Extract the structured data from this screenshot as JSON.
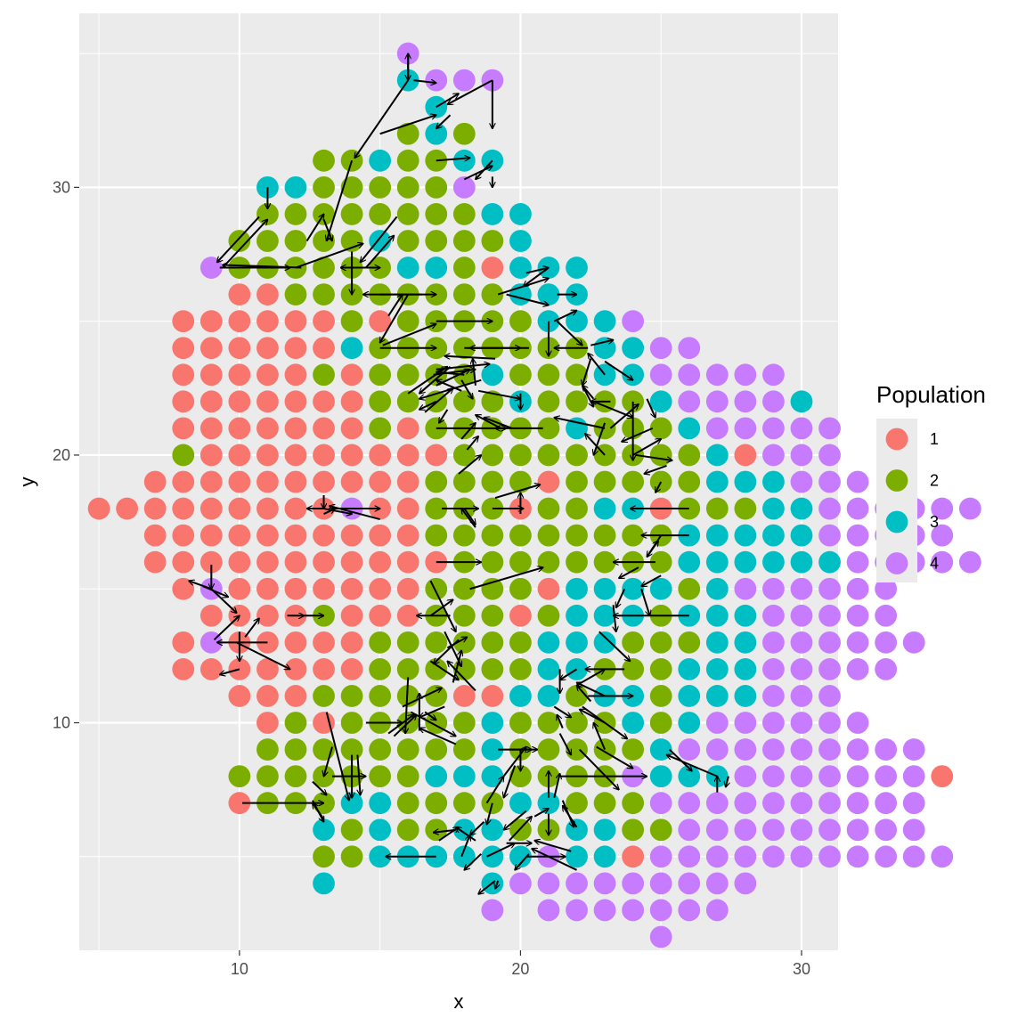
{
  "chart_data": {
    "type": "scatter",
    "xlabel": "x",
    "ylabel": "y",
    "xlim": [
      4.3,
      31.3
    ],
    "ylim": [
      1.5,
      36.5
    ],
    "x_ticks": [
      10,
      20,
      30
    ],
    "y_ticks": [
      10,
      20,
      30
    ],
    "grid": true,
    "legend": {
      "title": "Population",
      "position": "right",
      "entries": [
        "1",
        "2",
        "3",
        "4"
      ]
    },
    "colors": {
      "1": "#F8766D",
      "2": "#7CAE00",
      "3": "#00BFC4",
      "4": "#C77CFF",
      "arrow": "#000000",
      "panel": "#EBEBEB",
      "grid": "#FFFFFF"
    },
    "rows": [
      {
        "y": 35,
        "x0": 16,
        "pops": "4"
      },
      {
        "y": 34,
        "x0": 16,
        "pops": "3444"
      },
      {
        "y": 33,
        "x0": 17,
        "pops": "3"
      },
      {
        "y": 32,
        "x0": 16,
        "pops": "232"
      },
      {
        "y": 31,
        "x0": 13,
        "pops": "2232233"
      },
      {
        "y": 30,
        "x0": 11,
        "pops": "33222224"
      },
      {
        "y": 29,
        "x0": 11,
        "pops": "2222222233"
      },
      {
        "y": 28,
        "x0": 10,
        "pops": "22222322223"
      },
      {
        "y": 27,
        "x0": 9,
        "pops": "42222223321333"
      },
      {
        "y": 26,
        "x0": 10,
        "pops": "1122222222333"
      },
      {
        "y": 25,
        "x0": 8,
        "pops": "11111121222223334"
      },
      {
        "y": 24,
        "x0": 8,
        "pops": "1111113222222223344"
      },
      {
        "y": 23,
        "x0": 8,
        "pops": "1111121222232223344444"
      },
      {
        "y": 22,
        "x0": 8,
        "pops": "11111112222232222344443"
      },
      {
        "y": 21,
        "x0": 8,
        "pops": "111111121222223222344444"
      },
      {
        "y": 20,
        "x0": 8,
        "pops": "211111111122222222231444"
      },
      {
        "y": 19,
        "x0": 7,
        "pops": "11111111112222122222333444"
      },
      {
        "y": 18,
        "x0": 5,
        "pops": "11111111141122212233122233444444"
      },
      {
        "y": 17,
        "x0": 7,
        "pops": "11111111112222222223333344444"
      },
      {
        "y": 16,
        "x0": 7,
        "pops": "111111111112222222233333344444"
      },
      {
        "y": 15,
        "x0": 8,
        "pops": "14111111122221333323444444"
      },
      {
        "y": 14,
        "x0": 9,
        "pops": "1111211122212333233344444"
      },
      {
        "y": 13,
        "x0": 8,
        "pops": "141111122222233322233444444"
      },
      {
        "y": 12,
        "x0": 8,
        "pops": "11111112222223322233344444"
      },
      {
        "y": 11,
        "x0": 10,
        "pops": "1112222211332332333444"
      },
      {
        "y": 10,
        "x0": 11,
        "pops": "1212222232222323444444"
      },
      {
        "y": 9,
        "x0": 11,
        "pops": "222222223222223444444444"
      },
      {
        "y": 8,
        "x0": 10,
        "pops": "22222223332222433344444441"
      },
      {
        "y": 7,
        "x0": 10,
        "pops": "1222332222332224444444444"
      },
      {
        "y": 6,
        "x0": 13,
        "pops": "3232233223322444444444"
      },
      {
        "y": 5,
        "x0": 13,
        "pops": "22333333433144444444444"
      },
      {
        "y": 4,
        "x0": 13,
        "pops": "3-----3444444444"
      },
      {
        "y": 3,
        "x0": 19,
        "pops": "4-4444444"
      },
      {
        "y": 2,
        "x0": 25,
        "pops": "4"
      }
    ],
    "arrows": [
      [
        16,
        35,
        16,
        34
      ],
      [
        16,
        34,
        16,
        35
      ],
      [
        16.2,
        34,
        17,
        33.9
      ],
      [
        17,
        33,
        17.8,
        33.5
      ],
      [
        19,
        34,
        17.4,
        33.1
      ],
      [
        19,
        34,
        19,
        32.2
      ],
      [
        17.5,
        32.7,
        17,
        32.2
      ],
      [
        15,
        32,
        17,
        32.7
      ],
      [
        16,
        34,
        14.1,
        31.1
      ],
      [
        17,
        31,
        18.2,
        31.1
      ],
      [
        18,
        30.3,
        19,
        30.8
      ],
      [
        19,
        31,
        18.4,
        30.3
      ],
      [
        19,
        30.4,
        19,
        30
      ],
      [
        14,
        31,
        13.1,
        28
      ],
      [
        12.4,
        28,
        13,
        29
      ],
      [
        13,
        28.8,
        13.3,
        28
      ],
      [
        11,
        30,
        11,
        29.2
      ],
      [
        10.7,
        28.9,
        9.2,
        27.2
      ],
      [
        9.4,
        27,
        11,
        28.8
      ],
      [
        9.3,
        27,
        11.8,
        27
      ],
      [
        12.2,
        27,
        9.4,
        27.1
      ],
      [
        12,
        27,
        14.4,
        27.9
      ],
      [
        14,
        27,
        15,
        27
      ],
      [
        15,
        27,
        13.6,
        27
      ],
      [
        14,
        27.6,
        14,
        26
      ],
      [
        15.6,
        28.9,
        14.3,
        27.2
      ],
      [
        14.5,
        27,
        15.5,
        28.2
      ],
      [
        15,
        26,
        17,
        26
      ],
      [
        16.5,
        26,
        14.4,
        26
      ],
      [
        15.3,
        25.2,
        15.8,
        26
      ],
      [
        16,
        26,
        15,
        24.2
      ],
      [
        17,
        25,
        19,
        25
      ],
      [
        15,
        24,
        17,
        24
      ],
      [
        15.1,
        24.1,
        17,
        24.9
      ],
      [
        18,
        24,
        20,
        24
      ],
      [
        20.3,
        24,
        18.2,
        24
      ],
      [
        21,
        25,
        21,
        23.7
      ],
      [
        21.2,
        25,
        22,
        25.4
      ],
      [
        21.3,
        25,
        22.2,
        24.1
      ],
      [
        19.2,
        26,
        21,
        26.6
      ],
      [
        19.5,
        26,
        21,
        25.6
      ],
      [
        20.2,
        26.8,
        21,
        27
      ],
      [
        21,
        27,
        20.1,
        26.3
      ],
      [
        21.3,
        26,
        22,
        26
      ],
      [
        22.4,
        24,
        21.2,
        24
      ],
      [
        22.5,
        24.1,
        23.3,
        24.3
      ],
      [
        23,
        23.5,
        24,
        22.8
      ],
      [
        23,
        23,
        22.4,
        23.8
      ],
      [
        22.5,
        23.6,
        22.2,
        22.6
      ],
      [
        22.2,
        22.6,
        22.6,
        21.8
      ],
      [
        22.6,
        22,
        24,
        21.4
      ],
      [
        23,
        20,
        22.3,
        20.8
      ],
      [
        23,
        21,
        21.2,
        21.4
      ],
      [
        23.2,
        21,
        24.2,
        21.9
      ],
      [
        23,
        21.2,
        22.6,
        20
      ],
      [
        24,
        22,
        24,
        19.8
      ],
      [
        24.5,
        22.1,
        24.8,
        21.4
      ],
      [
        24.7,
        21,
        23.6,
        20.5
      ],
      [
        24,
        20,
        25,
        20.6
      ],
      [
        24.1,
        20,
        25.4,
        19.8
      ],
      [
        25.2,
        19.6,
        24.4,
        19.3
      ],
      [
        25,
        19,
        24.8,
        18.6
      ],
      [
        26,
        18,
        23.9,
        18
      ],
      [
        26,
        17,
        24.3,
        17
      ],
      [
        25,
        17,
        24.5,
        16.2
      ],
      [
        24.5,
        16.2,
        24.9,
        16.8
      ],
      [
        24.8,
        16,
        23.3,
        16
      ],
      [
        25,
        15.5,
        24.3,
        15.1
      ],
      [
        24.3,
        15,
        24.6,
        14
      ],
      [
        26,
        14,
        23.3,
        14
      ],
      [
        24.2,
        15.8,
        23.5,
        15.4
      ],
      [
        23.7,
        15,
        23.4,
        14.3
      ],
      [
        23.3,
        14.4,
        23.4,
        13.4
      ],
      [
        22.8,
        13.4,
        23.9,
        12.3
      ],
      [
        23.7,
        12,
        22.3,
        12
      ],
      [
        22,
        11.4,
        23,
        12
      ],
      [
        23,
        11,
        22,
        11.5
      ],
      [
        22.4,
        11,
        24,
        11
      ],
      [
        23,
        10,
        22.1,
        10.5
      ],
      [
        22.2,
        10.6,
        23.8,
        9.4
      ],
      [
        23,
        9,
        22.6,
        10
      ],
      [
        22.5,
        10.8,
        22,
        11.4
      ],
      [
        22,
        12,
        21.4,
        11.6
      ],
      [
        21.4,
        12,
        21.4,
        11.1
      ],
      [
        21.2,
        10.6,
        21.8,
        10.2
      ],
      [
        21.5,
        9.8,
        21.3,
        10.3
      ],
      [
        21.4,
        9.6,
        21.8,
        8.8
      ],
      [
        22.7,
        9.1,
        24,
        8.3
      ],
      [
        22.1,
        9,
        23.5,
        7.5
      ],
      [
        21.4,
        8,
        24.5,
        8
      ],
      [
        21.2,
        7.2,
        21.4,
        8.1
      ],
      [
        20,
        9,
        20,
        8.2
      ],
      [
        19.6,
        9,
        20.4,
        9
      ],
      [
        19.2,
        9,
        20.6,
        9
      ],
      [
        19.4,
        8,
        20.2,
        9.1
      ],
      [
        19.8,
        8.4,
        19.4,
        7.2
      ],
      [
        19,
        7,
        18.8,
        6.2
      ],
      [
        18.8,
        7,
        19.4,
        8
      ],
      [
        18.7,
        6.3,
        18.2,
        5.8
      ],
      [
        18.4,
        5.6,
        17.7,
        6.1
      ],
      [
        18.6,
        5.1,
        18,
        4.5
      ],
      [
        17.7,
        6,
        16.9,
        5.9
      ],
      [
        17.1,
        5.6,
        17.8,
        6.1
      ],
      [
        17,
        5,
        15.2,
        5
      ],
      [
        17.9,
        5,
        18.2,
        5.8
      ],
      [
        19.1,
        4.1,
        18.5,
        3.6
      ],
      [
        18.8,
        5,
        19.8,
        5.5
      ],
      [
        19.5,
        5.5,
        20.4,
        5.5
      ],
      [
        20.2,
        5,
        21.6,
        5
      ],
      [
        22,
        4.5,
        20.4,
        5.3
      ],
      [
        21.8,
        5.2,
        20.5,
        5.6
      ],
      [
        19.6,
        5.6,
        20.4,
        6.5
      ],
      [
        20.2,
        6.7,
        19.4,
        6
      ],
      [
        20.5,
        6.5,
        21,
        6.8
      ],
      [
        21,
        6.6,
        21,
        5.8
      ],
      [
        21,
        7.2,
        21,
        8.2
      ],
      [
        21.5,
        7.1,
        21.9,
        6.1
      ],
      [
        22,
        6.1,
        21.5,
        6.9
      ],
      [
        20.3,
        5.1,
        19.8,
        4.5
      ],
      [
        19.2,
        4.1,
        19.1,
        3.8
      ],
      [
        25.3,
        9,
        26.1,
        8.2
      ],
      [
        27,
        8,
        25.2,
        8.8
      ],
      [
        27,
        7.4,
        27,
        8
      ],
      [
        27.4,
        8,
        27.3,
        7.6
      ],
      [
        11,
        13,
        9.2,
        13
      ],
      [
        9.9,
        13,
        11.8,
        12
      ],
      [
        10,
        13.4,
        10,
        12.3
      ],
      [
        9.1,
        13.1,
        10,
        14
      ],
      [
        10,
        12,
        9.3,
        11.8
      ],
      [
        10.2,
        13.2,
        10.7,
        13.9
      ],
      [
        9,
        15,
        9.9,
        14.1
      ],
      [
        9,
        15,
        8.2,
        15.3
      ],
      [
        8.7,
        15.1,
        9.6,
        14.7
      ],
      [
        9,
        15.9,
        9,
        15
      ],
      [
        13,
        18,
        12.4,
        18
      ],
      [
        13,
        18.5,
        13,
        18
      ],
      [
        13.3,
        18,
        15,
        18
      ],
      [
        13,
        18,
        14,
        17.8
      ],
      [
        15,
        17.6,
        13.2,
        18.1
      ],
      [
        13,
        17.8,
        13.4,
        18
      ],
      [
        12.3,
        14,
        13,
        14
      ],
      [
        11.7,
        14,
        12.3,
        14
      ],
      [
        10.1,
        7,
        13,
        7
      ],
      [
        12.6,
        7.8,
        13.1,
        7.3
      ],
      [
        13,
        6.4,
        12.6,
        7
      ],
      [
        12.6,
        7.1,
        13,
        6.3
      ],
      [
        13.3,
        8,
        14.5,
        8
      ],
      [
        14,
        8.8,
        14,
        7.2
      ],
      [
        13.3,
        9.1,
        13,
        8
      ],
      [
        13.1,
        10.4,
        13.9,
        7.1
      ],
      [
        14.2,
        8.8,
        14.3,
        7.3
      ],
      [
        14.5,
        10,
        15.8,
        10
      ],
      [
        15.3,
        9.6,
        16.2,
        10.3
      ],
      [
        16,
        11.7,
        15.9,
        9.6
      ],
      [
        16.4,
        9.7,
        16.4,
        11.1
      ],
      [
        16.6,
        10.4,
        17,
        10.1
      ],
      [
        16.1,
        10.4,
        17.7,
        9.5
      ],
      [
        15.5,
        9.5,
        16.3,
        10.3
      ],
      [
        15.8,
        10.6,
        17.2,
        11.3
      ],
      [
        17.7,
        9.2,
        16.4,
        9.8
      ],
      [
        17.3,
        10.6,
        16.4,
        10.2
      ],
      [
        16.8,
        12.3,
        17.8,
        11.6
      ],
      [
        17.6,
        11.5,
        17.9,
        12.7
      ],
      [
        18.4,
        11.2,
        17.4,
        12.3
      ],
      [
        17.4,
        12.8,
        18.1,
        13.2
      ],
      [
        17.3,
        13.4,
        17.9,
        12.1
      ],
      [
        17.8,
        13.1,
        16.9,
        12.2
      ],
      [
        16.8,
        14,
        17.6,
        14.6
      ],
      [
        16.8,
        15.3,
        17.7,
        13.4
      ],
      [
        17.5,
        14,
        16.3,
        14
      ],
      [
        17,
        16,
        18.6,
        16
      ],
      [
        18.2,
        15,
        20.8,
        15.8
      ],
      [
        17.2,
        18,
        18.5,
        18
      ],
      [
        18.4,
        17.3,
        17.9,
        18
      ],
      [
        18,
        18,
        18.4,
        17.4
      ],
      [
        19,
        18,
        20.1,
        18
      ],
      [
        20,
        17.8,
        20,
        18.6
      ],
      [
        19.1,
        18.4,
        20.7,
        18.9
      ],
      [
        17.8,
        19.3,
        18.6,
        20
      ],
      [
        18.1,
        20.2,
        18.5,
        20.7
      ],
      [
        17.9,
        20.6,
        18.4,
        21.2
      ],
      [
        17,
        21,
        19.5,
        21
      ],
      [
        19.3,
        21,
        18.4,
        21.5
      ],
      [
        17.4,
        21.7,
        17.1,
        21.2
      ],
      [
        17,
        22,
        16.4,
        21.7
      ],
      [
        16.6,
        21.6,
        17.6,
        22.5
      ],
      [
        17.9,
        22.8,
        18.3,
        22.1
      ],
      [
        17.9,
        22.4,
        17,
        22.8
      ],
      [
        17,
        22.6,
        18.2,
        23.2
      ],
      [
        18.6,
        22.8,
        16.4,
        22.1
      ],
      [
        16,
        22.3,
        17.4,
        23.3
      ],
      [
        17.5,
        23.3,
        16.4,
        22.3
      ],
      [
        16.9,
        23,
        18.4,
        23.2
      ],
      [
        18,
        23,
        17,
        23.1
      ],
      [
        17,
        23.2,
        18.9,
        23.4
      ],
      [
        18.5,
        22.4,
        20,
        22.1
      ],
      [
        18.4,
        22.6,
        18.3,
        23.6
      ],
      [
        19.1,
        23.6,
        17.3,
        23.7
      ],
      [
        19.7,
        21,
        18.7,
        21.4
      ],
      [
        20.8,
        21,
        19.1,
        21
      ],
      [
        20,
        22.3,
        20,
        21.7
      ],
      [
        23.2,
        22,
        22.5,
        22
      ],
      [
        22.6,
        22.1,
        22.2,
        22.6
      ]
    ]
  }
}
